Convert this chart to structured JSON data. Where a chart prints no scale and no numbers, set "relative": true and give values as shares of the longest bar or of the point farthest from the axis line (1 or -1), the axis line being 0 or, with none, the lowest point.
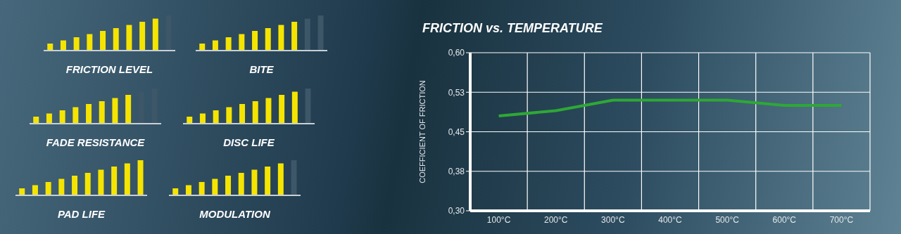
{
  "chart_data": [
    {
      "type": "bar",
      "relative": true,
      "xlabel": "FRICTION LEVEL",
      "categories": [
        null,
        null,
        null,
        null,
        null,
        null,
        null,
        null,
        null,
        null
      ],
      "values": [
        0.2,
        0.29,
        0.38,
        0.47,
        0.56,
        0.64,
        0.73,
        0.82,
        0.91,
        1.0
      ],
      "colors": [
        "#f5e400",
        "#f5e400",
        "#f5e400",
        "#f5e400",
        "#f5e400",
        "#f5e400",
        "#f5e400",
        "#f5e400",
        "#f5e400",
        "#3d5668"
      ]
    },
    {
      "type": "bar",
      "relative": true,
      "xlabel": "BITE",
      "categories": [
        null,
        null,
        null,
        null,
        null,
        null,
        null,
        null,
        null,
        null
      ],
      "values": [
        0.2,
        0.29,
        0.38,
        0.47,
        0.56,
        0.64,
        0.73,
        0.82,
        0.91,
        1.0
      ],
      "colors": [
        "#f5e400",
        "#f5e400",
        "#f5e400",
        "#f5e400",
        "#f5e400",
        "#f5e400",
        "#f5e400",
        "#f5e400",
        "#3d5668",
        "#3d5668"
      ]
    },
    {
      "type": "bar",
      "relative": true,
      "xlabel": "FADE RESISTANCE",
      "categories": [
        null,
        null,
        null,
        null,
        null,
        null,
        null,
        null,
        null,
        null
      ],
      "values": [
        0.2,
        0.29,
        0.38,
        0.47,
        0.56,
        0.64,
        0.73,
        0.82,
        0.91,
        1.0
      ],
      "colors": [
        "#f5e400",
        "#f5e400",
        "#f5e400",
        "#f5e400",
        "#f5e400",
        "#f5e400",
        "#f5e400",
        "#f5e400",
        "#3d5668",
        "#3d5668"
      ]
    },
    {
      "type": "bar",
      "relative": true,
      "xlabel": "DISC LIFE",
      "categories": [
        null,
        null,
        null,
        null,
        null,
        null,
        null,
        null,
        null,
        null
      ],
      "values": [
        0.2,
        0.29,
        0.38,
        0.47,
        0.56,
        0.64,
        0.73,
        0.82,
        0.91,
        1.0
      ],
      "colors": [
        "#f5e400",
        "#f5e400",
        "#f5e400",
        "#f5e400",
        "#f5e400",
        "#f5e400",
        "#f5e400",
        "#f5e400",
        "#f5e400",
        "#3d5668"
      ]
    },
    {
      "type": "bar",
      "relative": true,
      "xlabel": "PAD LIFE",
      "categories": [
        null,
        null,
        null,
        null,
        null,
        null,
        null,
        null,
        null,
        null
      ],
      "values": [
        0.2,
        0.29,
        0.38,
        0.47,
        0.56,
        0.64,
        0.73,
        0.82,
        0.91,
        1.0
      ],
      "colors": [
        "#f5e400",
        "#f5e400",
        "#f5e400",
        "#f5e400",
        "#f5e400",
        "#f5e400",
        "#f5e400",
        "#f5e400",
        "#f5e400",
        "#f5e400"
      ]
    },
    {
      "type": "bar",
      "relative": true,
      "xlabel": "MODULATION",
      "categories": [
        null,
        null,
        null,
        null,
        null,
        null,
        null,
        null,
        null,
        null
      ],
      "values": [
        0.2,
        0.29,
        0.38,
        0.47,
        0.56,
        0.64,
        0.73,
        0.82,
        0.91,
        1.0
      ],
      "colors": [
        "#f5e400",
        "#f5e400",
        "#f5e400",
        "#f5e400",
        "#f5e400",
        "#f5e400",
        "#f5e400",
        "#f5e400",
        "#f5e400",
        "#3d5668"
      ]
    },
    {
      "type": "line",
      "title": "FRICTION vs. TEMPERATURE",
      "ylabel": "COEFFICIENT OF FRICTION",
      "categories": [
        "100°C",
        "200°C",
        "300°C",
        "400°C",
        "500°C",
        "600°C",
        "700°C"
      ],
      "series": [
        {
          "color": "#2ea836",
          "values": [
            0.48,
            0.49,
            0.51,
            0.51,
            0.51,
            0.5,
            0.5
          ]
        }
      ],
      "ylim": [
        0.3,
        0.6
      ],
      "yticks": [
        {
          "value": 0.3,
          "label": "0,30"
        },
        {
          "value": 0.375,
          "label": "0,38"
        },
        {
          "value": 0.45,
          "label": "0,45"
        },
        {
          "value": 0.525,
          "label": "0,53"
        },
        {
          "value": 0.6,
          "label": "0,60"
        }
      ],
      "grid": true
    }
  ]
}
